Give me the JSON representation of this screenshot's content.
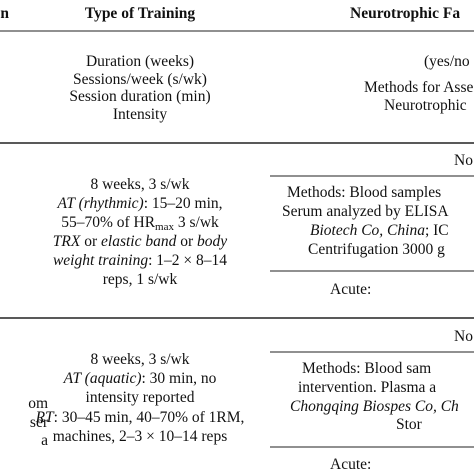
{
  "table": {
    "rows": [
      {
        "col1": [
          [
            {
              "text": "n"
            }
          ]
        ],
        "col2": [
          [
            {
              "text": "Type of Training"
            }
          ]
        ],
        "col3": [
          [
            {
              "text": "Neurotrophic Fa"
            }
          ]
        ]
      },
      {
        "col2": [
          [
            {
              "text": "Duration (weeks)"
            }
          ],
          [
            {
              "text": "Sessions/week (s/wk)"
            }
          ],
          [
            {
              "text": "Session duration (min)"
            }
          ],
          [
            {
              "text": "Intensity"
            }
          ]
        ],
        "col3": [
          [
            {
              "text": "(yes/no"
            }
          ],
          [
            {
              "text": "Methods for Asses"
            }
          ],
          [
            {
              "text": "Neurotrophic"
            }
          ]
        ]
      },
      {
        "col2": [
          [
            {
              "text": "8 weeks, 3 s/wk"
            }
          ],
          [
            {
              "text": "AT (rhythmic)",
              "italic": true
            },
            {
              "text": ": 15–20 min,"
            }
          ],
          [
            {
              "text": "55–70% of HR"
            },
            {
              "text": "max",
              "sub": true
            },
            {
              "text": " 3 s/wk"
            }
          ],
          [
            {
              "text": "TRX",
              "italic": true
            },
            {
              "text": " or "
            },
            {
              "text": "elastic band",
              "italic": true
            },
            {
              "text": " or "
            },
            {
              "text": "body",
              "italic": true
            }
          ],
          [
            {
              "text": "weight training",
              "italic": true
            },
            {
              "text": ": 1–2 × 8–14"
            }
          ],
          [
            {
              "text": "reps, 1 s/wk"
            }
          ]
        ],
        "col3": [
          [
            {
              "text": "No"
            }
          ],
          [
            {
              "text": "Methods: Blood samples"
            }
          ],
          [
            {
              "text": "Serum analyzed by ELISA"
            }
          ],
          [
            {
              "text": "Biotech Co, China",
              "italic": true
            },
            {
              "text": "; IC"
            }
          ],
          [
            {
              "text": "Centrifugation 3000 g"
            }
          ],
          [
            {
              "text": "Acute:"
            }
          ]
        ]
      },
      {
        "col1": [
          [
            {
              "text": "om"
            }
          ],
          [
            {
              "text": "ser"
            }
          ],
          [
            {
              "text": "a"
            }
          ]
        ],
        "col2": [
          [
            {
              "text": "8 weeks, 3 s/wk"
            }
          ],
          [
            {
              "text": "AT (aquatic)",
              "italic": true
            },
            {
              "text": ": 30 min, no"
            }
          ],
          [
            {
              "text": "intensity reported"
            }
          ],
          [
            {
              "text": "RT",
              "italic": true
            },
            {
              "text": ": 30–45 min, 40–70% of 1RM,"
            }
          ],
          [
            {
              "text": "machines, 2–3 × 10–14 reps"
            }
          ]
        ],
        "col3": [
          [
            {
              "text": "No"
            }
          ],
          [
            {
              "text": "Methods: Blood sam"
            }
          ],
          [
            {
              "text": "intervention. Plasma a"
            }
          ],
          [
            {
              "text": "Chongqing Biospes Co, Ch",
              "italic": true
            }
          ],
          [
            {
              "text": "Stor"
            }
          ],
          [
            {
              "text": "Acute:"
            }
          ]
        ]
      }
    ]
  }
}
